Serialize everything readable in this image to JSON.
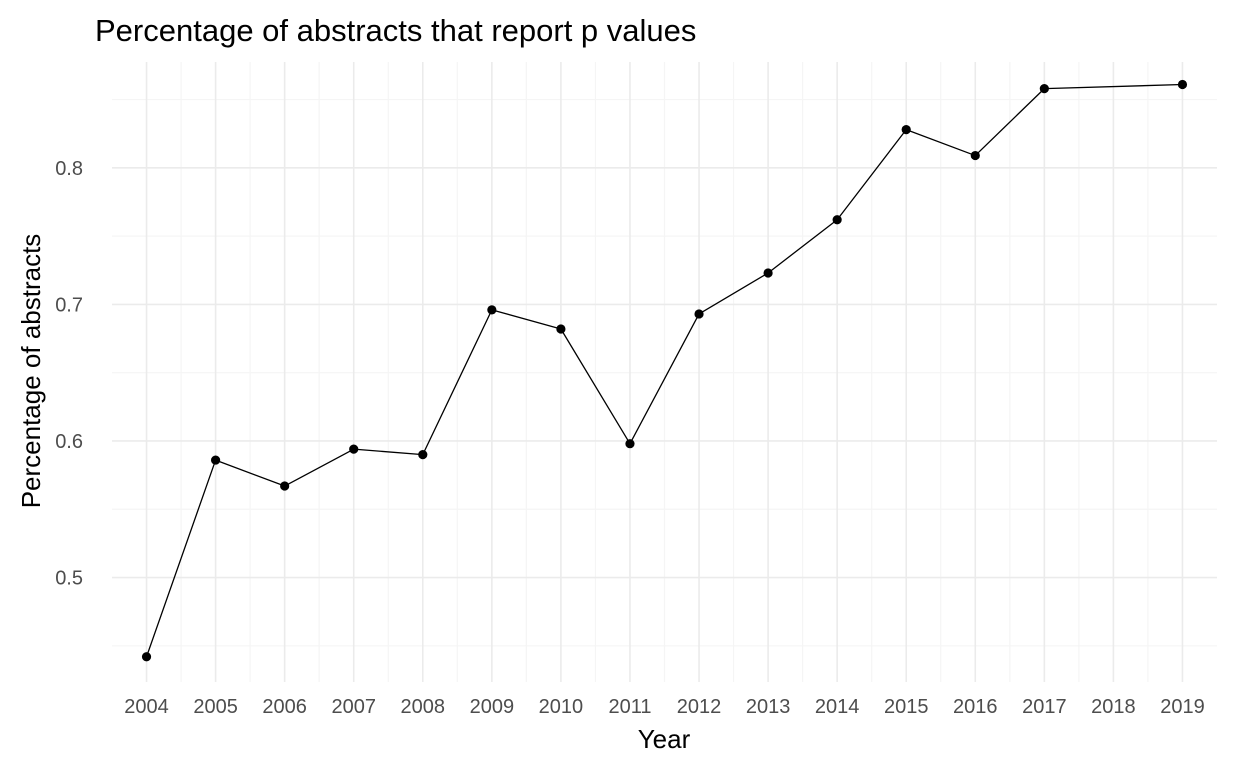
{
  "chart_data": {
    "type": "line",
    "title": "Percentage of abstracts that report p values",
    "xlabel": "Year",
    "ylabel": "Percentage of abstracts",
    "x": [
      2004,
      2005,
      2006,
      2007,
      2008,
      2009,
      2010,
      2011,
      2012,
      2013,
      2014,
      2015,
      2016,
      2017,
      2019
    ],
    "y": [
      0.442,
      0.586,
      0.567,
      0.594,
      0.59,
      0.696,
      0.682,
      0.598,
      0.693,
      0.723,
      0.762,
      0.828,
      0.809,
      0.858,
      0.861
    ],
    "xlim": [
      2003.5,
      2019.5
    ],
    "ylim": [
      0.4235,
      0.8775
    ],
    "x_ticks": [
      2004,
      2005,
      2006,
      2007,
      2008,
      2009,
      2010,
      2011,
      2012,
      2013,
      2014,
      2015,
      2016,
      2017,
      2018,
      2019
    ],
    "x_tick_labels": [
      "2004",
      "2005",
      "2006",
      "2007",
      "2008",
      "2009",
      "2010",
      "2011",
      "2012",
      "2013",
      "2014",
      "2015",
      "2016",
      "2017",
      "2018",
      "2019"
    ],
    "y_ticks": [
      0.5,
      0.6,
      0.7,
      0.8
    ],
    "y_tick_labels": [
      "0.5",
      "0.6",
      "0.7",
      "0.8"
    ],
    "y_minor_ticks": [
      0.45,
      0.55,
      0.65,
      0.75,
      0.85
    ],
    "grid": true,
    "legend": "none",
    "colors": {
      "line": "#000000",
      "point": "#000000",
      "grid_major": "#ebebeb",
      "grid_minor": "#f5f5f5"
    }
  }
}
